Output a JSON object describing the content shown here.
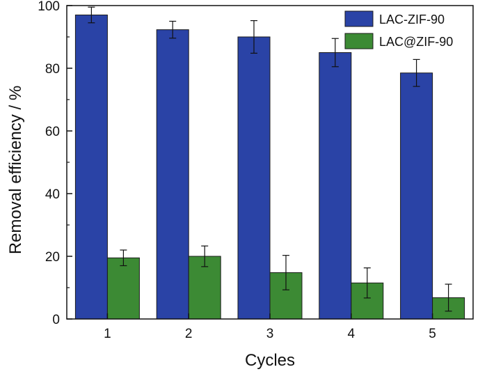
{
  "chart_data": {
    "type": "bar",
    "xlabel": "Cycles",
    "ylabel": "Removal efficiency / %",
    "categories": [
      "1",
      "2",
      "3",
      "4",
      "5"
    ],
    "ylim": [
      0,
      100
    ],
    "yticks": [
      0,
      20,
      40,
      60,
      80,
      100
    ],
    "legend_position": "top-right",
    "grid": false,
    "series": [
      {
        "name": "LAC-ZIF-90",
        "color": "#2a43a6",
        "values": [
          97,
          92.3,
          90,
          85,
          78.5
        ],
        "errors": [
          2.5,
          2.7,
          5.2,
          4.5,
          4.3
        ]
      },
      {
        "name": "LAC@ZIF-90",
        "color": "#3c8a34",
        "values": [
          19.5,
          20,
          14.8,
          11.5,
          6.8
        ],
        "errors": [
          2.5,
          3.3,
          5.5,
          4.8,
          4.3
        ]
      }
    ]
  }
}
